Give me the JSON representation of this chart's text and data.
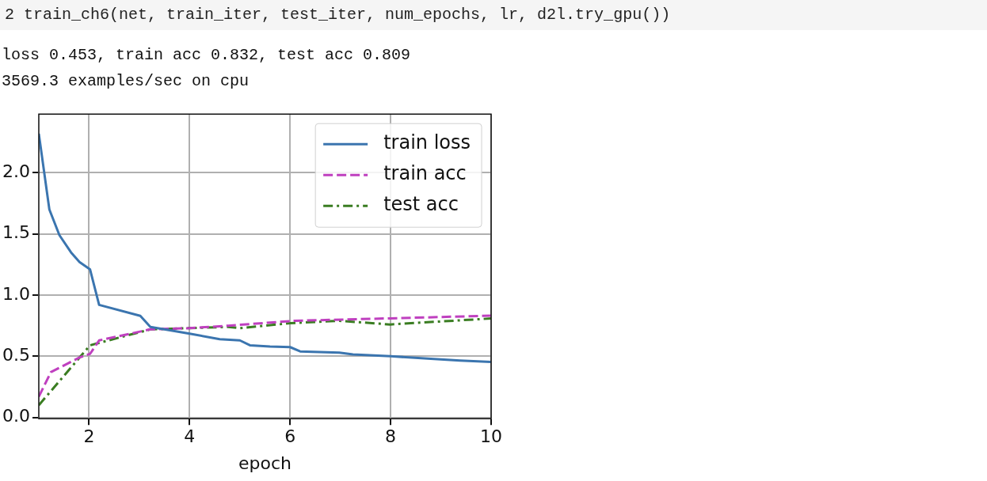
{
  "chart_data": {
    "type": "line",
    "xlabel": "epoch",
    "annotations": [
      "2  train_ch6(net, train_iter, test_iter, num_epochs, lr, d2l.try_gpu())",
      "loss 0.453, train acc 0.832, test acc 0.809",
      "3569.3 examples/sec on cpu"
    ],
    "series": [
      {
        "name": "train loss",
        "color": "#3b75af",
        "line_style": "solid",
        "x": [
          1.0,
          1.21,
          1.41,
          1.64,
          1.81,
          2.02,
          2.2,
          3.02,
          3.22,
          4.0,
          4.6,
          5.0,
          5.2,
          5.6,
          6.0,
          6.2,
          6.98,
          7.25,
          7.5,
          8.0,
          8.8,
          9.38,
          10
        ],
        "values": [
          2.32,
          1.7,
          1.49,
          1.35,
          1.27,
          1.21,
          0.92,
          0.83,
          0.74,
          0.685,
          0.64,
          0.63,
          0.59,
          0.58,
          0.575,
          0.54,
          0.53,
          0.515,
          0.51,
          0.5,
          0.48,
          0.465,
          0.453
        ]
      },
      {
        "name": "train acc",
        "color": "#bf40bf",
        "line_style": "dashed",
        "x": [
          1.0,
          1.24,
          1.81,
          2.02,
          2.2,
          3.22,
          4.0,
          4.77,
          6.09,
          7.99,
          10
        ],
        "values": [
          0.17,
          0.37,
          0.49,
          0.52,
          0.63,
          0.72,
          0.73,
          0.75,
          0.79,
          0.81,
          0.832
        ]
      },
      {
        "name": "test acc",
        "color": "#3a7d22",
        "line_style": "dashdot",
        "x": [
          1.0,
          2.02,
          3.22,
          4.0,
          4.77,
          5.0,
          6.0,
          6.98,
          7.99,
          10
        ],
        "values": [
          0.1,
          0.59,
          0.72,
          0.73,
          0.74,
          0.73,
          0.77,
          0.79,
          0.76,
          0.809
        ]
      }
    ],
    "xlim": [
      1,
      10
    ],
    "xticks": [
      2,
      4,
      6,
      8,
      10
    ],
    "ylim": [
      -0.01,
      2.48
    ],
    "yticks": [
      {
        "value": 0,
        "label": "0.0"
      },
      {
        "value": 0.5,
        "label": "0.5"
      },
      {
        "value": 1,
        "label": "1.0"
      },
      {
        "value": 1.5,
        "label": "1.5"
      },
      {
        "value": 2,
        "label": "2.0"
      }
    ],
    "grid": true,
    "legend": "top right",
    "marker": "none"
  }
}
